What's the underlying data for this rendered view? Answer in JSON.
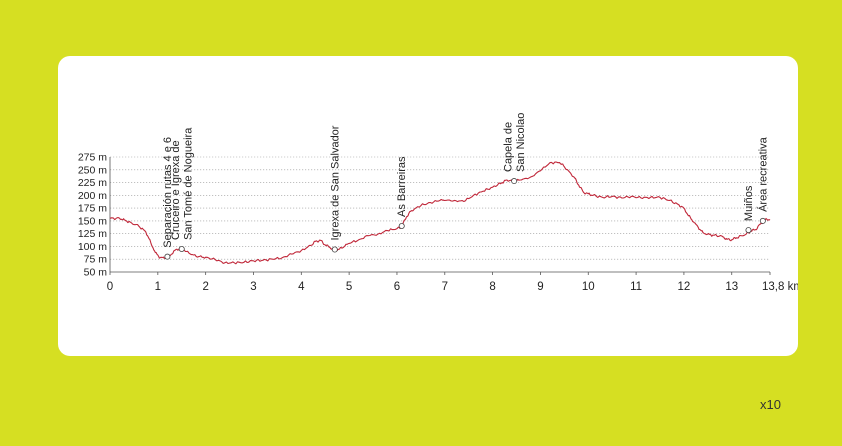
{
  "page": {
    "background": "#d6df22",
    "card_background": "#ffffff",
    "page_number": "x10"
  },
  "chart_data": {
    "type": "line",
    "title": "",
    "xlabel": "",
    "ylabel": "",
    "line_color": "#c0283a",
    "grid": "horizontal dotted",
    "xlim": [
      0,
      13.8
    ],
    "ylim": [
      50,
      275
    ],
    "y_ticks": [
      {
        "value": 50,
        "label": "50 m"
      },
      {
        "value": 75,
        "label": "75 m"
      },
      {
        "value": 100,
        "label": "100 m"
      },
      {
        "value": 125,
        "label": "125 m"
      },
      {
        "value": 150,
        "label": "150 m"
      },
      {
        "value": 175,
        "label": "175 m"
      },
      {
        "value": 200,
        "label": "200 m"
      },
      {
        "value": 225,
        "label": "225 m"
      },
      {
        "value": 250,
        "label": "250 m"
      },
      {
        "value": 275,
        "label": "275 m"
      }
    ],
    "x_ticks": [
      {
        "value": 0,
        "label": "0"
      },
      {
        "value": 1,
        "label": "1"
      },
      {
        "value": 2,
        "label": "2"
      },
      {
        "value": 3,
        "label": "3"
      },
      {
        "value": 4,
        "label": "4"
      },
      {
        "value": 5,
        "label": "5"
      },
      {
        "value": 6,
        "label": "6"
      },
      {
        "value": 7,
        "label": "7"
      },
      {
        "value": 8,
        "label": "8"
      },
      {
        "value": 9,
        "label": "9"
      },
      {
        "value": 10,
        "label": "10"
      },
      {
        "value": 11,
        "label": "11"
      },
      {
        "value": 12,
        "label": "12"
      },
      {
        "value": 13,
        "label": "13"
      },
      {
        "value": 13.8,
        "label": "13,8 km"
      }
    ],
    "profile": [
      [
        0,
        155
      ],
      [
        0.2,
        155
      ],
      [
        0.3,
        152
      ],
      [
        0.45,
        146
      ],
      [
        0.6,
        140
      ],
      [
        0.75,
        128
      ],
      [
        0.85,
        108
      ],
      [
        0.95,
        88
      ],
      [
        1.05,
        78
      ],
      [
        1.15,
        77
      ],
      [
        1.25,
        82
      ],
      [
        1.35,
        92
      ],
      [
        1.45,
        96
      ],
      [
        1.55,
        93
      ],
      [
        1.7,
        84
      ],
      [
        1.85,
        80
      ],
      [
        2.0,
        79
      ],
      [
        2.2,
        74
      ],
      [
        2.4,
        68
      ],
      [
        2.6,
        68
      ],
      [
        2.8,
        69
      ],
      [
        3.0,
        72
      ],
      [
        3.2,
        73
      ],
      [
        3.4,
        75
      ],
      [
        3.6,
        78
      ],
      [
        3.8,
        85
      ],
      [
        4.0,
        92
      ],
      [
        4.2,
        102
      ],
      [
        4.3,
        110
      ],
      [
        4.4,
        112
      ],
      [
        4.5,
        103
      ],
      [
        4.6,
        98
      ],
      [
        4.7,
        93
      ],
      [
        4.8,
        95
      ],
      [
        4.9,
        100
      ],
      [
        5.0,
        106
      ],
      [
        5.2,
        113
      ],
      [
        5.4,
        121
      ],
      [
        5.6,
        124
      ],
      [
        5.8,
        131
      ],
      [
        6.0,
        135
      ],
      [
        6.1,
        139
      ],
      [
        6.2,
        158
      ],
      [
        6.3,
        170
      ],
      [
        6.5,
        180
      ],
      [
        6.7,
        186
      ],
      [
        6.9,
        190
      ],
      [
        7.0,
        190
      ],
      [
        7.2,
        190
      ],
      [
        7.4,
        188
      ],
      [
        7.6,
        200
      ],
      [
        7.8,
        208
      ],
      [
        8.0,
        216
      ],
      [
        8.2,
        225
      ],
      [
        8.3,
        230
      ],
      [
        8.45,
        228
      ],
      [
        8.6,
        230
      ],
      [
        8.8,
        236
      ],
      [
        9.0,
        248
      ],
      [
        9.2,
        264
      ],
      [
        9.4,
        264
      ],
      [
        9.5,
        256
      ],
      [
        9.7,
        236
      ],
      [
        9.8,
        220
      ],
      [
        9.9,
        206
      ],
      [
        10.0,
        203
      ],
      [
        10.1,
        200
      ],
      [
        10.3,
        196
      ],
      [
        10.5,
        198
      ],
      [
        10.7,
        195
      ],
      [
        10.9,
        198
      ],
      [
        11.1,
        195
      ],
      [
        11.3,
        196
      ],
      [
        11.5,
        196
      ],
      [
        11.7,
        190
      ],
      [
        11.9,
        181
      ],
      [
        12.0,
        175
      ],
      [
        12.1,
        160
      ],
      [
        12.2,
        148
      ],
      [
        12.3,
        137
      ],
      [
        12.4,
        127
      ],
      [
        12.5,
        124
      ],
      [
        12.6,
        122
      ],
      [
        12.8,
        120
      ],
      [
        12.9,
        114
      ],
      [
        13.0,
        113
      ],
      [
        13.1,
        117
      ],
      [
        13.3,
        124
      ],
      [
        13.4,
        130
      ],
      [
        13.5,
        133
      ],
      [
        13.6,
        144
      ],
      [
        13.7,
        152
      ],
      [
        13.8,
        153
      ]
    ],
    "waypoints": [
      {
        "x": 1.2,
        "y": 80,
        "lines": [
          "Separación rutas 4 e 6"
        ]
      },
      {
        "x": 1.5,
        "y": 95,
        "lines": [
          "Cruceiro e Igrexa de",
          "San Tomé de Nogueira"
        ]
      },
      {
        "x": 4.7,
        "y": 94,
        "lines": [
          "Igrexa de San Salvador"
        ]
      },
      {
        "x": 6.1,
        "y": 140,
        "lines": [
          "As Barreiras"
        ]
      },
      {
        "x": 8.45,
        "y": 228,
        "lines": [
          "Capela de",
          "San Nicolao"
        ]
      },
      {
        "x": 13.35,
        "y": 132,
        "lines": [
          "Muiños"
        ]
      },
      {
        "x": 13.65,
        "y": 150,
        "lines": [
          "Área recreativa"
        ]
      }
    ]
  }
}
